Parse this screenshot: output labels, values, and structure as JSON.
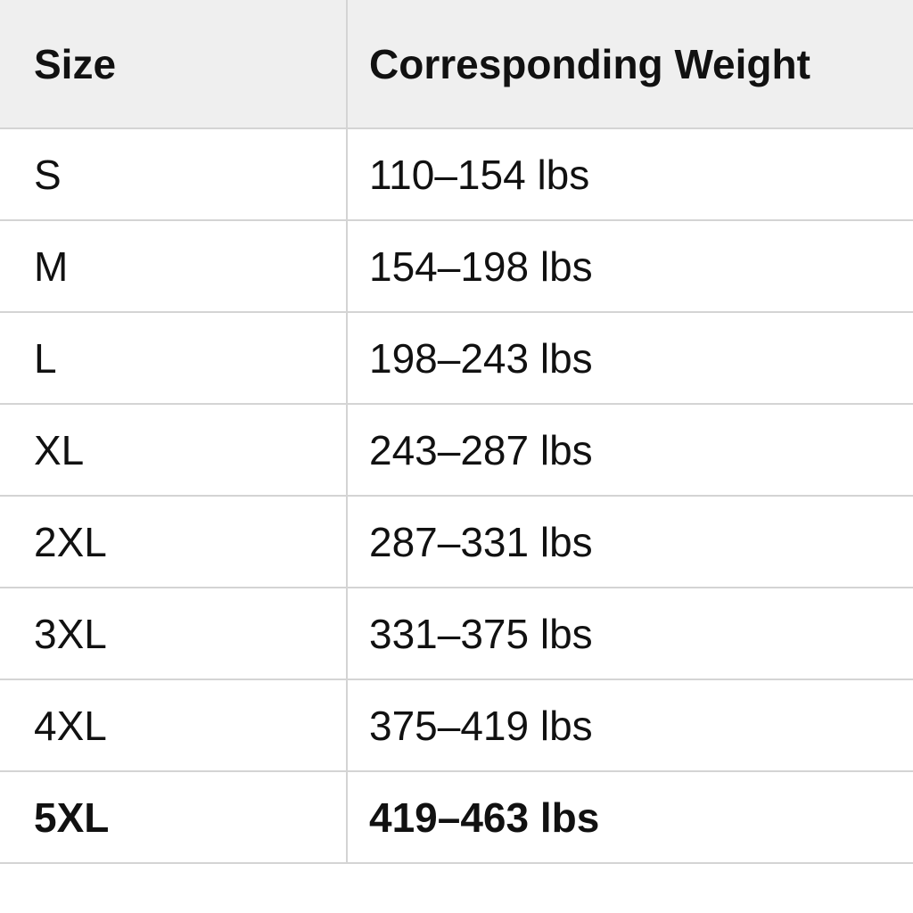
{
  "table": {
    "header": [
      "Size",
      "Corresponding Weight"
    ],
    "rows": [
      [
        "S",
        "110–154 lbs"
      ],
      [
        "M",
        "154–198 lbs"
      ],
      [
        "L",
        "198–243 lbs"
      ],
      [
        "XL",
        "243–287 lbs"
      ],
      [
        "2XL",
        "287–331 lbs"
      ],
      [
        "3XL",
        "331–375 lbs"
      ],
      [
        "4XL",
        "375–419 lbs"
      ],
      [
        "5XL",
        "419–463 lbs"
      ]
    ]
  }
}
